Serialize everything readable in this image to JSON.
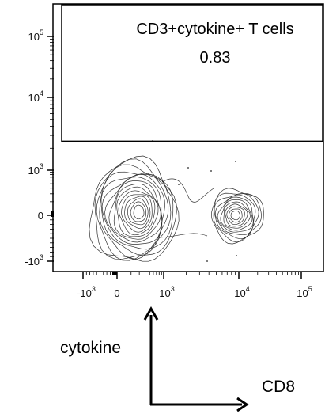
{
  "chart_data": {
    "type": "contour",
    "x_scale": "biexponential",
    "y_scale": "biexponential",
    "x_ticks": [
      {
        "value": -1000,
        "base": "-10",
        "exp": "3"
      },
      {
        "value": 0,
        "base": "0",
        "exp": ""
      },
      {
        "value": 1000,
        "base": "10",
        "exp": "3"
      },
      {
        "value": 10000,
        "base": "10",
        "exp": "4"
      },
      {
        "value": 100000,
        "base": "10",
        "exp": "5"
      }
    ],
    "y_ticks": [
      {
        "value": 100000,
        "base": "10",
        "exp": "5"
      },
      {
        "value": 10000,
        "base": "10",
        "exp": "4"
      },
      {
        "value": 1000,
        "base": "10",
        "exp": "3"
      },
      {
        "value": 0,
        "base": "0",
        "exp": ""
      },
      {
        "value": -1000,
        "base": "-10",
        "exp": "3"
      }
    ],
    "gate": {
      "name": "CD3+cytokine+ T cells",
      "percent": "0.83",
      "x_range": [
        -1000,
        100000
      ],
      "y_range": [
        2500,
        100000
      ]
    },
    "populations": [
      {
        "center_x": 300,
        "center_y": 0,
        "levels": 16
      },
      {
        "center_x": 9000,
        "center_y": 0,
        "levels": 11
      }
    ],
    "grid": false,
    "legend": "none"
  },
  "annotations": {
    "y_axis_arrow_label": "cytokine",
    "x_axis_arrow_label": "CD8"
  }
}
